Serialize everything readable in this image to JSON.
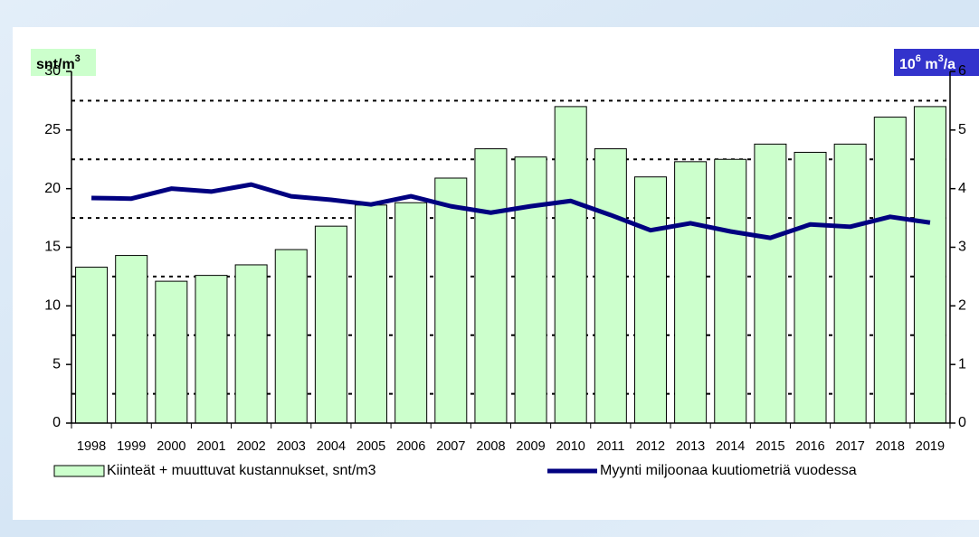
{
  "chart_data": {
    "type": "bar_line",
    "ylabel": [
      "snt/m",
      "3"
    ],
    "y2label": [
      "10",
      "6",
      " m",
      "3",
      "/a"
    ],
    "categories": [
      "1998",
      "1999",
      "2000",
      "2001",
      "2002",
      "2003",
      "2004",
      "2005",
      "2006",
      "2007",
      "2008",
      "2009",
      "2010",
      "2011",
      "2012",
      "2013",
      "2014",
      "2015",
      "2016",
      "2017",
      "2018",
      "2019"
    ],
    "series": [
      {
        "name": "Kiinteät + muuttuvat kustannukset, snt/m3",
        "type": "bar",
        "color": "#ccffcc",
        "values": [
          13.3,
          14.3,
          12.1,
          12.6,
          13.5,
          14.8,
          16.8,
          18.6,
          18.8,
          20.9,
          23.4,
          22.7,
          27.0,
          23.4,
          21.0,
          22.3,
          22.5,
          23.8,
          23.1,
          23.8,
          26.1,
          27.0
        ]
      },
      {
        "name": "Myynti miljoonaa kuutiometriä vuodessa",
        "type": "line",
        "axis": "y2",
        "color": "#000080",
        "values": [
          3.84,
          3.83,
          4.0,
          3.95,
          4.07,
          3.87,
          3.81,
          3.73,
          3.87,
          3.7,
          3.59,
          3.7,
          3.79,
          3.55,
          3.29,
          3.41,
          3.27,
          3.16,
          3.39,
          3.35,
          3.52,
          3.42
        ]
      }
    ],
    "ylim": [
      0,
      30
    ],
    "yticks": [
      0,
      5,
      10,
      15,
      20,
      25,
      30
    ],
    "y2lim": [
      0,
      6
    ],
    "y2ticks": [
      0,
      1,
      2,
      3,
      4,
      5,
      6
    ],
    "ygrid": [
      2.5,
      7.5,
      12.5,
      17.5,
      22.5,
      27.5
    ]
  }
}
